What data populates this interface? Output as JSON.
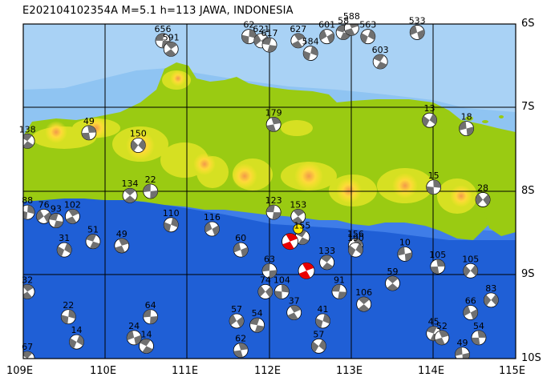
{
  "header": {
    "title": "E202104102354A  M=5.1  h=113  JAWA, INDONESIA"
  },
  "axes": {
    "lat_labels": [
      "6S",
      "7S",
      "8S",
      "9S",
      "10S"
    ],
    "lon_labels": [
      "109E",
      "110E",
      "111E",
      "112E",
      "113E",
      "114E",
      "115E"
    ]
  },
  "colors": {
    "deep_sea": "#1f5fd6",
    "mid_sea": "#4a86e6",
    "shallow_sea": "#8fc4f2",
    "land_low": "#9acb12",
    "land_mid": "#d6e022",
    "land_high": "#ffe62a",
    "peak": "#f0a24a",
    "mechanism_fill": "#707070",
    "main_event": "#e80000",
    "highlight_event": "#ffe800"
  },
  "events": [
    {
      "label": "656",
      "lon": 110.7,
      "lat": -6.2
    },
    {
      "label": "591",
      "lon": 110.8,
      "lat": -6.3
    },
    {
      "label": "62",
      "lon": 111.75,
      "lat": -6.15
    },
    {
      "label": "621",
      "lon": 111.9,
      "lat": -6.2
    },
    {
      "label": "617",
      "lon": 112.0,
      "lat": -6.25
    },
    {
      "label": "627",
      "lon": 112.35,
      "lat": -6.2
    },
    {
      "label": "584",
      "lon": 112.5,
      "lat": -6.35
    },
    {
      "label": "601",
      "lon": 112.7,
      "lat": -6.15
    },
    {
      "label": "58",
      "lon": 112.9,
      "lat": -6.1
    },
    {
      "label": "588",
      "lon": 113.0,
      "lat": -6.05
    },
    {
      "label": "563",
      "lon": 113.2,
      "lat": -6.15
    },
    {
      "label": "533",
      "lon": 113.8,
      "lat": -6.1
    },
    {
      "label": "603",
      "lon": 113.35,
      "lat": -6.45
    },
    {
      "label": "179",
      "lon": 112.05,
      "lat": -7.2
    },
    {
      "label": "13",
      "lon": 113.95,
      "lat": -7.15
    },
    {
      "label": "18",
      "lon": 114.4,
      "lat": -7.25
    },
    {
      "label": "138",
      "lon": 109.05,
      "lat": -7.4
    },
    {
      "label": "49",
      "lon": 109.8,
      "lat": -7.3
    },
    {
      "label": "150",
      "lon": 110.4,
      "lat": -7.45
    },
    {
      "label": "22",
      "lon": 110.55,
      "lat": -8.0
    },
    {
      "label": "134",
      "lon": 110.3,
      "lat": -8.05
    },
    {
      "label": "15",
      "lon": 114.0,
      "lat": -7.95
    },
    {
      "label": "28",
      "lon": 114.6,
      "lat": -8.1
    },
    {
      "label": "123",
      "lon": 112.05,
      "lat": -8.25
    },
    {
      "label": "153",
      "lon": 112.35,
      "lat": -8.3
    },
    {
      "label": "88",
      "lon": 109.05,
      "lat": -8.25
    },
    {
      "label": "76",
      "lon": 109.25,
      "lat": -8.3
    },
    {
      "label": "93",
      "lon": 109.4,
      "lat": -8.35
    },
    {
      "label": "102",
      "lon": 109.6,
      "lat": -8.3
    },
    {
      "label": "110",
      "lon": 110.8,
      "lat": -8.4
    },
    {
      "label": "116",
      "lon": 111.3,
      "lat": -8.45
    },
    {
      "label": "51",
      "lon": 109.85,
      "lat": -8.6
    },
    {
      "label": "49",
      "lon": 110.2,
      "lat": -8.65
    },
    {
      "label": "31",
      "lon": 109.5,
      "lat": -8.7
    },
    {
      "label": "60",
      "lon": 111.65,
      "lat": -8.7
    },
    {
      "label": "155",
      "lon": 112.4,
      "lat": -8.55
    },
    {
      "label": "156",
      "lon": 113.05,
      "lat": -8.65
    },
    {
      "label": "190",
      "lon": 113.05,
      "lat": -8.7
    },
    {
      "label": "10",
      "lon": 113.65,
      "lat": -8.75
    },
    {
      "label": "133",
      "lon": 112.7,
      "lat": -8.85
    },
    {
      "label": "105",
      "lon": 114.05,
      "lat": -8.9
    },
    {
      "label": "105",
      "lon": 114.45,
      "lat": -8.95
    },
    {
      "label": "63",
      "lon": 112.0,
      "lat": -8.95
    },
    {
      "label": "59",
      "lon": 113.5,
      "lat": -9.1
    },
    {
      "label": "104",
      "lon": 112.15,
      "lat": -9.2
    },
    {
      "label": "74",
      "lon": 111.95,
      "lat": -9.2
    },
    {
      "label": "91",
      "lon": 112.85,
      "lat": -9.2
    },
    {
      "label": "32",
      "lon": 109.05,
      "lat": -9.2
    },
    {
      "label": "22",
      "lon": 109.55,
      "lat": -9.5
    },
    {
      "label": "57",
      "lon": 111.6,
      "lat": -9.55
    },
    {
      "label": "54",
      "lon": 111.85,
      "lat": -9.6
    },
    {
      "label": "37",
      "lon": 112.3,
      "lat": -9.45
    },
    {
      "label": "41",
      "lon": 112.65,
      "lat": -9.55
    },
    {
      "label": "66",
      "lon": 114.45,
      "lat": -9.45
    },
    {
      "label": "45",
      "lon": 114.0,
      "lat": -9.7
    },
    {
      "label": "52",
      "lon": 114.1,
      "lat": -9.75
    },
    {
      "label": "14",
      "lon": 109.65,
      "lat": -9.8
    },
    {
      "label": "24",
      "lon": 110.35,
      "lat": -9.75
    },
    {
      "label": "14",
      "lon": 110.5,
      "lat": -9.85
    },
    {
      "label": "62",
      "lon": 111.65,
      "lat": -9.9
    },
    {
      "label": "57",
      "lon": 112.6,
      "lat": -9.85
    },
    {
      "label": "49",
      "lon": 114.35,
      "lat": -9.95
    },
    {
      "label": "67",
      "lon": 109.05,
      "lat": -10.0
    },
    {
      "label": "54",
      "lon": 114.55,
      "lat": -9.75
    },
    {
      "label": "83",
      "lon": 114.7,
      "lat": -9.3
    },
    {
      "label": "64",
      "lon": 110.55,
      "lat": -9.5
    },
    {
      "label": "106",
      "lon": 113.15,
      "lat": -9.35
    }
  ],
  "main_event": {
    "lon": 112.25,
    "lat": -8.6
  },
  "secondary_event": {
    "lon": 112.45,
    "lat": -8.95
  },
  "highlight_event": {
    "lon": 112.35,
    "lat": -8.45
  }
}
